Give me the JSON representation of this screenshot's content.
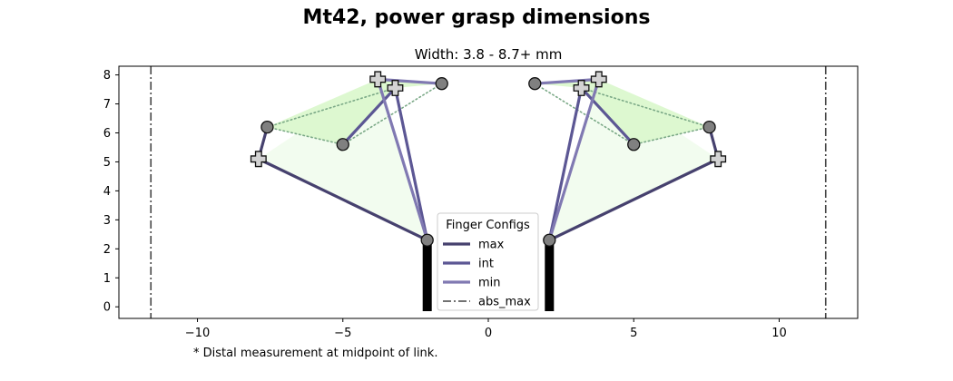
{
  "chart_data": {
    "type": "line",
    "title": "Mt42, power grasp dimensions",
    "subtitle": "Width: 3.8 - 8.7+ mm",
    "footnote": "* Distal measurement at midpoint of link.",
    "xlim": [
      -12.7,
      12.7
    ],
    "ylim": [
      -0.4,
      8.3
    ],
    "x_ticks": [
      -10,
      -5,
      0,
      5,
      10
    ],
    "x_tick_labels": [
      "−10",
      "−5",
      "0",
      "5",
      "10"
    ],
    "y_ticks": [
      0,
      1,
      2,
      3,
      4,
      5,
      6,
      7,
      8
    ],
    "grid": false,
    "legend": {
      "title": "Finger Configs",
      "placement": "lower-center",
      "entries": [
        {
          "label": "max",
          "color": "#46416e",
          "style": "solid"
        },
        {
          "label": "int",
          "color": "#5c5794",
          "style": "solid"
        },
        {
          "label": "min",
          "color": "#8079b2",
          "style": "solid"
        },
        {
          "label": "abs_max",
          "color": "#444444",
          "style": "dashdot"
        }
      ]
    },
    "abs_max_x": [
      -11.6,
      11.6
    ],
    "bases": [
      {
        "x": -2.1,
        "y0": -0.15,
        "y1": 2.3
      },
      {
        "x": 2.1,
        "y0": -0.15,
        "y1": 2.3
      }
    ],
    "colors": {
      "max": "#46416e",
      "int": "#5c5794",
      "min": "#8079b2",
      "fill_outer": "#f2fcef",
      "fill_inner": "#ddf8d0",
      "dotted": "#7aa886",
      "joint": "#808080",
      "tip": "#d3d3d3",
      "abs_max": "#444444",
      "base": "#000000"
    },
    "fingers": [
      {
        "side": "left",
        "base_joint": [
          -2.1,
          2.3
        ],
        "configs": [
          {
            "name": "max",
            "points": [
              [
                -2.1,
                2.3
              ],
              [
                -7.9,
                5.1
              ],
              [
                -7.6,
                6.2
              ]
            ]
          },
          {
            "name": "int",
            "points": [
              [
                -2.1,
                2.3
              ],
              [
                -3.2,
                7.55
              ],
              [
                -5.0,
                5.6
              ]
            ]
          },
          {
            "name": "min",
            "points": [
              [
                -2.1,
                2.3
              ],
              [
                -3.8,
                7.85
              ],
              [
                -1.6,
                7.7
              ]
            ]
          }
        ],
        "outer_polygon": [
          [
            -2.1,
            2.3
          ],
          [
            -7.9,
            5.1
          ],
          [
            -3.8,
            7.85
          ]
        ],
        "inner_polygon": [
          [
            -7.6,
            6.2
          ],
          [
            -5.0,
            5.6
          ],
          [
            -3.2,
            7.55
          ],
          [
            -1.6,
            7.7
          ],
          [
            -3.8,
            7.85
          ]
        ],
        "dotted_lines": [
          [
            [
              -7.6,
              6.2
            ],
            [
              -5.0,
              5.6
            ]
          ],
          [
            [
              -5.0,
              5.6
            ],
            [
              -1.6,
              7.7
            ]
          ],
          [
            [
              -7.6,
              6.2
            ],
            [
              -3.2,
              7.55
            ]
          ]
        ],
        "joints": [
          [
            -7.6,
            6.2
          ],
          [
            -5.0,
            5.6
          ],
          [
            -1.6,
            7.7
          ]
        ],
        "tips": [
          [
            -7.9,
            5.1
          ],
          [
            -3.2,
            7.55
          ],
          [
            -3.8,
            7.85
          ]
        ]
      },
      {
        "side": "right",
        "base_joint": [
          2.1,
          2.3
        ],
        "configs": [
          {
            "name": "max",
            "points": [
              [
                2.1,
                2.3
              ],
              [
                7.9,
                5.1
              ],
              [
                7.6,
                6.2
              ]
            ]
          },
          {
            "name": "int",
            "points": [
              [
                2.1,
                2.3
              ],
              [
                3.2,
                7.55
              ],
              [
                5.0,
                5.6
              ]
            ]
          },
          {
            "name": "min",
            "points": [
              [
                2.1,
                2.3
              ],
              [
                3.8,
                7.85
              ],
              [
                1.6,
                7.7
              ]
            ]
          }
        ],
        "outer_polygon": [
          [
            2.1,
            2.3
          ],
          [
            7.9,
            5.1
          ],
          [
            3.8,
            7.85
          ]
        ],
        "inner_polygon": [
          [
            7.6,
            6.2
          ],
          [
            5.0,
            5.6
          ],
          [
            3.2,
            7.55
          ],
          [
            1.6,
            7.7
          ],
          [
            3.8,
            7.85
          ]
        ],
        "dotted_lines": [
          [
            [
              7.6,
              6.2
            ],
            [
              5.0,
              5.6
            ]
          ],
          [
            [
              5.0,
              5.6
            ],
            [
              1.6,
              7.7
            ]
          ],
          [
            [
              7.6,
              6.2
            ],
            [
              3.2,
              7.55
            ]
          ]
        ],
        "joints": [
          [
            7.6,
            6.2
          ],
          [
            5.0,
            5.6
          ],
          [
            1.6,
            7.7
          ]
        ],
        "tips": [
          [
            7.9,
            5.1
          ],
          [
            3.2,
            7.55
          ],
          [
            3.8,
            7.85
          ]
        ]
      }
    ]
  }
}
